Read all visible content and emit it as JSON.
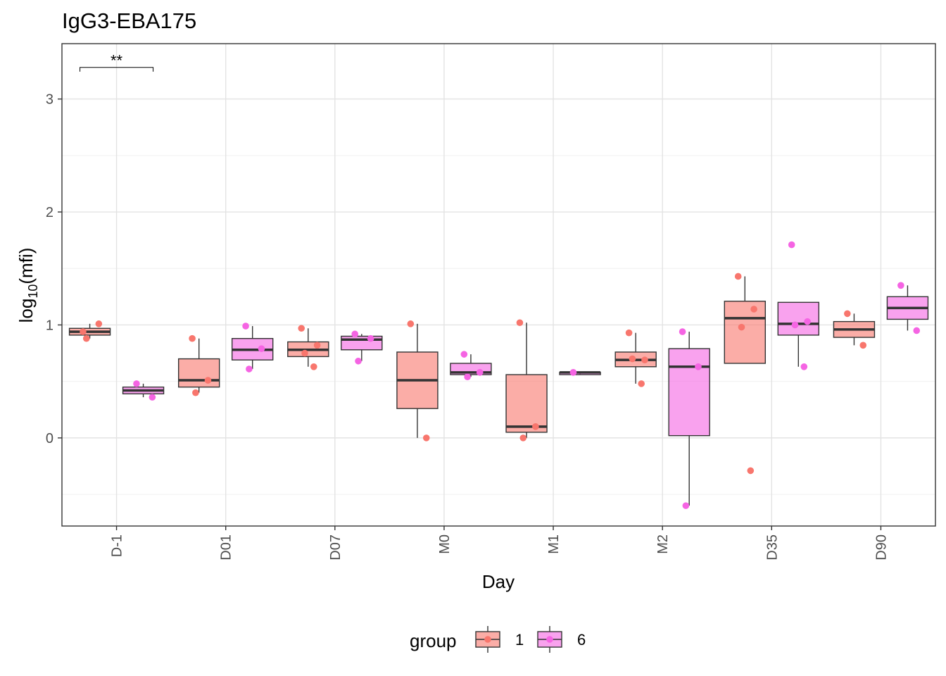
{
  "chart_data": {
    "type": "box",
    "title": "IgG3-EBA175",
    "xlabel": "Day",
    "ylabel": {
      "base": "log",
      "subscript": "10",
      "rest": "(mfi)"
    },
    "ylim": [
      -0.78,
      3.49
    ],
    "yticks": [
      0,
      1,
      2,
      3
    ],
    "grid": true,
    "legend_position": "bottom",
    "legend_title": "group",
    "categories": [
      "D-1",
      "D01",
      "D07",
      "M0",
      "M1",
      "M2",
      "D35",
      "D90"
    ],
    "series": [
      {
        "name": "1",
        "fill": "#f8766d",
        "point_color": "#f8766d",
        "boxes": [
          {
            "category": "D-1",
            "lower": 0.88,
            "q1": 0.91,
            "median": 0.94,
            "q3": 0.97,
            "upper": 1.01
          },
          {
            "category": "D01",
            "lower": 0.4,
            "q1": 0.45,
            "median": 0.51,
            "q3": 0.7,
            "upper": 0.88
          },
          {
            "category": "D07",
            "lower": 0.63,
            "q1": 0.72,
            "median": 0.78,
            "q3": 0.85,
            "upper": 0.97
          },
          {
            "category": "M0",
            "lower": 0.0,
            "q1": 0.26,
            "median": 0.51,
            "q3": 0.76,
            "upper": 1.01
          },
          {
            "category": "M1",
            "lower": 0.0,
            "q1": 0.05,
            "median": 0.1,
            "q3": 0.56,
            "upper": 1.02
          },
          {
            "category": "M2",
            "lower": 0.48,
            "q1": 0.63,
            "median": 0.69,
            "q3": 0.76,
            "upper": 0.93
          },
          {
            "category": "D35",
            "lower": 0.66,
            "q1": 0.66,
            "median": 1.06,
            "q3": 1.21,
            "upper": 1.43
          },
          {
            "category": "D90",
            "lower": 0.82,
            "q1": 0.89,
            "median": 0.96,
            "q3": 1.03,
            "upper": 1.1
          }
        ],
        "points": [
          {
            "category": "D-1",
            "values": [
              0.94,
              1.01,
              0.88
            ]
          },
          {
            "category": "D01",
            "values": [
              0.88,
              0.51,
              0.4
            ]
          },
          {
            "category": "D07",
            "values": [
              0.97,
              0.82,
              0.75,
              0.63
            ]
          },
          {
            "category": "M0",
            "values": [
              1.01,
              0.0
            ]
          },
          {
            "category": "M1",
            "values": [
              1.02,
              0.1,
              0.0
            ]
          },
          {
            "category": "M2",
            "values": [
              0.93,
              0.69,
              0.7,
              0.48
            ]
          },
          {
            "category": "D35",
            "values": [
              1.43,
              1.14,
              0.98,
              -0.29
            ]
          },
          {
            "category": "D90",
            "values": [
              1.1,
              0.82
            ]
          }
        ]
      },
      {
        "name": "6",
        "fill": "#f564e3",
        "point_color": "#f564e3",
        "boxes": [
          {
            "category": "D-1",
            "lower": 0.36,
            "q1": 0.39,
            "median": 0.42,
            "q3": 0.45,
            "upper": 0.48
          },
          {
            "category": "D01",
            "lower": 0.61,
            "q1": 0.69,
            "median": 0.78,
            "q3": 0.88,
            "upper": 0.99
          },
          {
            "category": "D07",
            "lower": 0.68,
            "q1": 0.78,
            "median": 0.87,
            "q3": 0.9,
            "upper": 0.92
          },
          {
            "category": "M0",
            "lower": 0.54,
            "q1": 0.56,
            "median": 0.58,
            "q3": 0.66,
            "upper": 0.74
          },
          {
            "category": "M1",
            "lower": 0.58,
            "q1": 0.56,
            "median": 0.58,
            "q3": 0.58,
            "upper": 0.58
          },
          {
            "category": "M2",
            "lower": -0.6,
            "q1": 0.02,
            "median": 0.63,
            "q3": 0.79,
            "upper": 0.94
          },
          {
            "category": "D35",
            "lower": 0.63,
            "q1": 0.91,
            "median": 1.01,
            "q3": 1.2,
            "upper": 1.2
          },
          {
            "category": "D90",
            "lower": 0.95,
            "q1": 1.05,
            "median": 1.15,
            "q3": 1.25,
            "upper": 1.35
          }
        ],
        "points": [
          {
            "category": "D-1",
            "values": [
              0.48,
              0.36
            ]
          },
          {
            "category": "D01",
            "values": [
              0.99,
              0.79,
              0.61
            ]
          },
          {
            "category": "D07",
            "values": [
              0.92,
              0.88,
              0.68
            ]
          },
          {
            "category": "M0",
            "values": [
              0.74,
              0.58,
              0.54
            ]
          },
          {
            "category": "M1",
            "values": [
              0.58
            ]
          },
          {
            "category": "M2",
            "values": [
              0.94,
              0.63,
              -0.6
            ]
          },
          {
            "category": "D35",
            "values": [
              1.71,
              1.03,
              1.0,
              0.63
            ]
          },
          {
            "category": "D90",
            "values": [
              1.35,
              0.95
            ]
          }
        ]
      }
    ],
    "annotations": [
      {
        "text": "**",
        "category": "D-1",
        "from_series": "1",
        "to_series": "6",
        "y": 3.28
      }
    ]
  }
}
